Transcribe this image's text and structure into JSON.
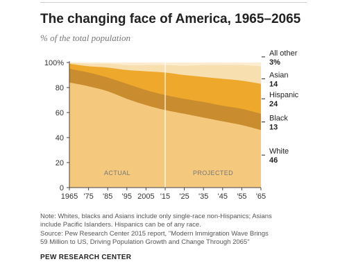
{
  "header": {
    "title": "The changing face of America, 1965–2065",
    "subtitle": "% of the total population"
  },
  "chart_data": {
    "type": "area",
    "stacked": true,
    "x_tick_labels": [
      "1965",
      "'75",
      "'85",
      "'95",
      "2005",
      "'15",
      "'25",
      "'35",
      "'45",
      "'55",
      "'65"
    ],
    "x": [
      1965,
      1975,
      1985,
      1995,
      2005,
      2015,
      2025,
      2035,
      2045,
      2055,
      2065
    ],
    "ylim": [
      0,
      100
    ],
    "y_ticks": [
      0,
      20,
      40,
      60,
      80,
      100
    ],
    "y_tick_labels": [
      "0",
      "20",
      "40",
      "60",
      "80",
      "100%"
    ],
    "divider_year": 2015,
    "region_labels": [
      "ACTUAL",
      "PROJECTED"
    ],
    "series": [
      {
        "name": "White",
        "color": "#f4c97e",
        "values": [
          84,
          81,
          77,
          71,
          66,
          62,
          59,
          56,
          53,
          50,
          46
        ]
      },
      {
        "name": "Black",
        "color": "#c98c2e",
        "values": [
          11,
          11,
          11,
          12,
          12,
          12,
          12,
          12.5,
          12.5,
          13,
          13
        ]
      },
      {
        "name": "Hispanic",
        "color": "#eea92d",
        "values": [
          4,
          5,
          8,
          11,
          15,
          18,
          19,
          20,
          21.5,
          22.5,
          24
        ]
      },
      {
        "name": "Asian",
        "color": "#f7dfb0",
        "values": [
          1,
          2,
          3,
          4,
          5,
          6,
          7.5,
          9.5,
          11,
          12.5,
          14
        ]
      },
      {
        "name": "All other",
        "color": "#fcecd0",
        "values": [
          0,
          1,
          1,
          2,
          2,
          2,
          2.5,
          2,
          2,
          2,
          3
        ]
      }
    ],
    "legend": [
      {
        "name": "All other",
        "value": "3%"
      },
      {
        "name": "Asian",
        "value": "14"
      },
      {
        "name": "Hispanic",
        "value": "24"
      },
      {
        "name": "Black",
        "value": "13"
      },
      {
        "name": "White",
        "value": "46"
      }
    ]
  },
  "notes": {
    "line1": "Note: Whites, blacks and Asians include only single-race non-Hispanics; Asians",
    "line2": "include Pacific Islanders. Hispanics can be of any race.",
    "line3": "Source:  Pew Research Center 2015 report, \"Modern Immigration Wave Brings",
    "line4": "59 Million to US, Driving Population Growth and Change Through 2065\""
  },
  "credit": "PEW RESEARCH CENTER"
}
